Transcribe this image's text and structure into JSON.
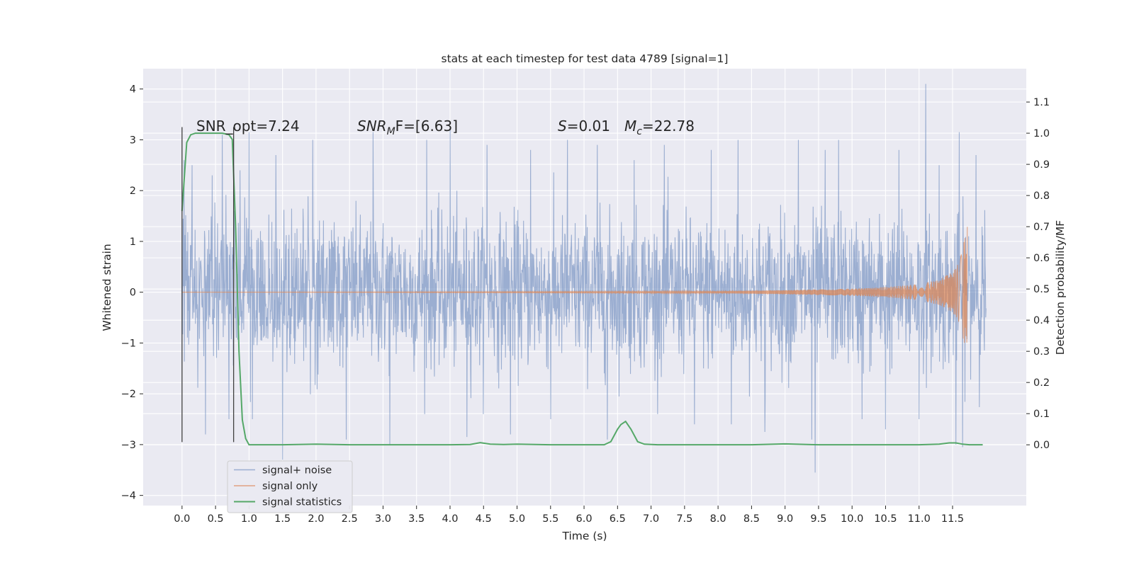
{
  "chart_data": {
    "type": "line",
    "title": "stats at each timestep for test data 4789 [signal=1]",
    "xlabel": "Time (s)",
    "ylabel": "Whitened strain",
    "y2label": "Detection probability/MF",
    "xlim": [
      -0.58,
      12.6
    ],
    "ylim": [
      -4.2,
      4.4
    ],
    "y2lim": [
      -0.195,
      1.207
    ],
    "x_ticks": [
      0.0,
      0.5,
      1.0,
      1.5,
      2.0,
      2.5,
      3.0,
      3.5,
      4.0,
      4.5,
      5.0,
      5.5,
      6.0,
      6.5,
      7.0,
      7.5,
      8.0,
      8.5,
      9.0,
      9.5,
      10.0,
      10.5,
      11.0,
      11.5
    ],
    "x_tick_labels": [
      "0.0",
      "0.5",
      "1.0",
      "1.5",
      "2.0",
      "2.5",
      "3.0",
      "3.5",
      "4.0",
      "4.5",
      "5.0",
      "5.5",
      "6.0",
      "6.5",
      "7.0",
      "7.5",
      "8.0",
      "8.5",
      "9.0",
      "9.5",
      "10.0",
      "10.5",
      "11.0",
      "11.5"
    ],
    "y_ticks": [
      -4,
      -3,
      -2,
      -1,
      0,
      1,
      2,
      3,
      4
    ],
    "y_tick_labels": [
      "−4",
      "−3",
      "−2",
      "−1",
      "0",
      "1",
      "2",
      "3",
      "4"
    ],
    "y2_ticks": [
      0.0,
      0.1,
      0.2,
      0.3,
      0.4,
      0.5,
      0.6,
      0.7,
      0.8,
      0.9,
      1.0,
      1.1
    ],
    "y2_tick_labels": [
      "0.0",
      "0.1",
      "0.2",
      "0.3",
      "0.4",
      "0.5",
      "0.6",
      "0.7",
      "0.8",
      "0.9",
      "1.0",
      "1.1"
    ],
    "grid": true,
    "legend_position": "bottom-left",
    "annotations": [
      {
        "text": "SNR_opt=7.24",
        "x": 0.2,
        "y": 3.35,
        "style": "plain"
      },
      {
        "text": "SNR",
        "sub": "M",
        "rest": "F=[6.63]",
        "x": 2.6,
        "y": 3.35,
        "style": "math"
      },
      {
        "text": "S",
        "sub": "",
        "rest": "=0.01",
        "x": 5.6,
        "y": 3.35,
        "style": "math"
      },
      {
        "text": "M",
        "sub": "c",
        "rest": "=22.78",
        "x": 6.6,
        "y": 3.35,
        "style": "math"
      }
    ],
    "vlines": [
      {
        "x": 0.0,
        "ymin": -2.95,
        "ymax": 3.25
      },
      {
        "x": 0.77,
        "ymin": -2.95,
        "ymax": 3.25
      }
    ],
    "series": [
      {
        "name": "signal+ noise",
        "color": "#4c72b0",
        "alpha": 0.5,
        "axis": "left",
        "description": "whitened noisy strain, approx. within ±1.3 with spikes to ±3",
        "x_range": [
          0.0,
          12.0
        ],
        "typical_amplitude": 1.3,
        "spikes": [
          {
            "x": 0.03,
            "y": 2.6
          },
          {
            "x": 0.15,
            "y": 2.5
          },
          {
            "x": 0.45,
            "y": 2.3
          },
          {
            "x": 0.6,
            "y": 3.1
          },
          {
            "x": 1.0,
            "y": 3.15
          },
          {
            "x": 1.4,
            "y": 2.7
          },
          {
            "x": 1.95,
            "y": 3.0
          },
          {
            "x": 2.45,
            "y": 3.05
          },
          {
            "x": 2.85,
            "y": 3.15
          },
          {
            "x": 3.1,
            "y": 3.1
          },
          {
            "x": 3.65,
            "y": 3.0
          },
          {
            "x": 4.0,
            "y": 3.25
          },
          {
            "x": 4.55,
            "y": 2.9
          },
          {
            "x": 5.2,
            "y": 2.8
          },
          {
            "x": 5.75,
            "y": 3.0
          },
          {
            "x": 6.2,
            "y": 2.9
          },
          {
            "x": 6.75,
            "y": 2.6
          },
          {
            "x": 7.2,
            "y": 2.9
          },
          {
            "x": 7.9,
            "y": 2.8
          },
          {
            "x": 8.3,
            "y": 3.0
          },
          {
            "x": 9.2,
            "y": 3.0
          },
          {
            "x": 9.6,
            "y": 2.8
          },
          {
            "x": 9.8,
            "y": 3.0
          },
          {
            "x": 10.7,
            "y": 2.8
          },
          {
            "x": 11.1,
            "y": 4.1
          },
          {
            "x": 11.3,
            "y": 2.5
          },
          {
            "x": 11.6,
            "y": 3.15
          },
          {
            "x": 11.85,
            "y": 2.7
          },
          {
            "x": 1.5,
            "y": -3.3
          },
          {
            "x": 2.45,
            "y": -2.9
          },
          {
            "x": 3.1,
            "y": -3.0
          },
          {
            "x": 4.25,
            "y": -2.85
          },
          {
            "x": 4.9,
            "y": -2.8
          },
          {
            "x": 6.35,
            "y": -2.9
          },
          {
            "x": 8.2,
            "y": -2.6
          },
          {
            "x": 9.45,
            "y": -3.55
          },
          {
            "x": 9.4,
            "y": -2.9
          },
          {
            "x": 10.15,
            "y": -2.5
          },
          {
            "x": 10.5,
            "y": -2.7
          },
          {
            "x": 11.55,
            "y": -3.0
          },
          {
            "x": 11.65,
            "y": -3.05
          },
          {
            "x": 0.35,
            "y": -2.8
          },
          {
            "x": 0.7,
            "y": -2.5
          },
          {
            "x": 1.05,
            "y": -2.5
          },
          {
            "x": 5.5,
            "y": -2.5
          },
          {
            "x": 7.65,
            "y": -2.6
          },
          {
            "x": 8.7,
            "y": -2.75
          },
          {
            "x": 11.0,
            "y": -2.5
          }
        ]
      },
      {
        "name": "signal only",
        "color": "#dd8452",
        "alpha": 0.7,
        "axis": "left",
        "description": "chirp waveform, near 0 until ~8 s, growing to ±1.3 at ~11.7 s",
        "x_range": [
          0.0,
          11.72
        ],
        "envelope_points": [
          [
            0.0,
            0.0
          ],
          [
            8.0,
            0.02
          ],
          [
            9.0,
            0.04
          ],
          [
            10.0,
            0.07
          ],
          [
            10.5,
            0.1
          ],
          [
            11.0,
            0.16
          ],
          [
            11.3,
            0.25
          ],
          [
            11.5,
            0.4
          ],
          [
            11.6,
            0.6
          ],
          [
            11.68,
            1.05
          ],
          [
            11.72,
            1.3
          ]
        ]
      },
      {
        "name": "signal statistics",
        "color": "#55a868",
        "alpha": 1.0,
        "axis": "right",
        "x": [
          0.0,
          0.07,
          0.13,
          0.2,
          0.3,
          0.45,
          0.6,
          0.7,
          0.75,
          0.8,
          0.85,
          0.9,
          0.95,
          1.0,
          1.1,
          1.5,
          2.0,
          2.5,
          3.0,
          4.0,
          4.3,
          4.45,
          4.6,
          4.8,
          5.0,
          5.5,
          6.0,
          6.3,
          6.4,
          6.5,
          6.55,
          6.62,
          6.7,
          6.8,
          6.9,
          7.1,
          7.5,
          8.0,
          8.5,
          9.0,
          9.5,
          10.0,
          10.5,
          11.0,
          11.3,
          11.45,
          11.55,
          11.65,
          11.75,
          11.95
        ],
        "values": [
          0.75,
          0.97,
          0.995,
          1.0,
          1.0,
          1.0,
          1.0,
          0.995,
          0.98,
          0.7,
          0.3,
          0.08,
          0.02,
          0.0,
          0.0,
          0.0,
          0.002,
          0.0,
          0.0,
          0.0,
          0.001,
          0.007,
          0.002,
          0.001,
          0.002,
          0.0,
          0.0,
          0.0,
          0.01,
          0.05,
          0.065,
          0.075,
          0.05,
          0.01,
          0.002,
          0.0,
          0.0,
          0.0,
          0.0,
          0.003,
          0.0,
          0.0,
          0.0,
          0.0,
          0.002,
          0.006,
          0.006,
          0.002,
          0.0,
          0.0
        ]
      }
    ]
  }
}
